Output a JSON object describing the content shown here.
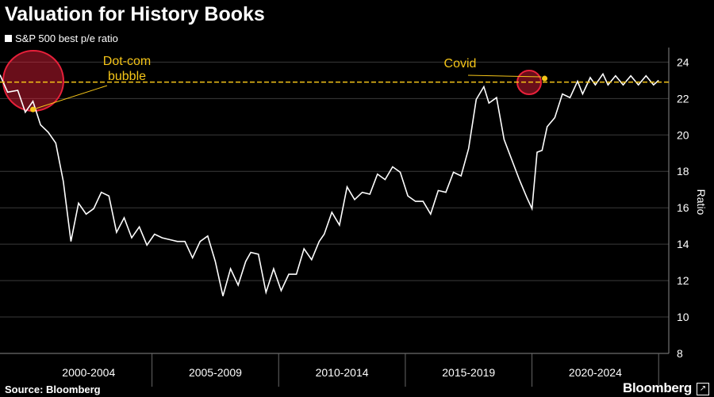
{
  "chart_data": {
    "type": "line",
    "title": "Valuation for History Books",
    "series": [
      {
        "name": "S&P 500 best p/e ratio",
        "x": [
          1999.0,
          1999.3,
          1999.7,
          2000.0,
          2000.3,
          2000.6,
          2000.9,
          2001.2,
          2001.5,
          2001.8,
          2002.1,
          2002.4,
          2002.7,
          2003.0,
          2003.3,
          2003.6,
          2003.9,
          2004.2,
          2004.5,
          2004.8,
          2005.1,
          2005.4,
          2005.7,
          2006.0,
          2006.3,
          2006.6,
          2006.9,
          2007.2,
          2007.5,
          2007.8,
          2008.1,
          2008.4,
          2008.7,
          2008.9,
          2009.2,
          2009.5,
          2009.8,
          2010.1,
          2010.4,
          2010.7,
          2011.0,
          2011.3,
          2011.6,
          2011.8,
          2012.1,
          2012.4,
          2012.7,
          2013.0,
          2013.3,
          2013.6,
          2013.9,
          2014.2,
          2014.5,
          2014.8,
          2015.1,
          2015.4,
          2015.7,
          2016.0,
          2016.3,
          2016.6,
          2016.9,
          2017.2,
          2017.5,
          2017.8,
          2018.1,
          2018.3,
          2018.6,
          2018.9,
          2019.2,
          2019.5,
          2019.8,
          2020.0,
          2020.2,
          2020.4,
          2020.6,
          2020.9,
          2021.2,
          2021.5,
          2021.8,
          2022.0,
          2022.3,
          2022.5,
          2022.8,
          2023.0,
          2023.3,
          2023.6,
          2023.9,
          2024.2,
          2024.5,
          2024.8,
          2025.0
        ],
        "values": [
          23.3,
          22.6,
          22.2,
          21.5,
          21.6,
          20.8,
          19.9,
          19.8,
          17.2,
          14.4,
          16.0,
          15.9,
          15.7,
          17.1,
          16.4,
          14.9,
          15.2,
          14.6,
          14.7,
          14.2,
          14.3,
          14.6,
          14.0,
          14.4,
          13.9,
          13.5,
          13.9,
          14.7,
          12.8,
          11.4,
          12.4,
          12.0,
          12.8,
          13.8,
          13.2,
          11.6,
          12.4,
          11.7,
          12.1,
          12.6,
          13.5,
          13.4,
          13.9,
          14.8,
          15.5,
          15.3,
          16.9,
          16.7,
          16.6,
          17.0,
          17.6,
          17.8,
          18.0,
          18.2,
          16.4,
          16.6,
          16.1,
          15.9,
          16.7,
          17.1,
          17.7,
          18.0,
          19.0,
          22.2,
          22.4,
          22.0,
          21.8,
          20.0,
          18.4,
          17.8,
          16.3,
          16.2,
          18.8,
          19.4,
          20.2,
          21.2,
          22.0,
          22.3,
          22.7,
          22.5,
          22.9,
          23.0,
          23.1,
          23.0,
          23.0,
          23.0,
          23.0,
          23.0,
          23.0,
          23.0,
          23.0
        ]
      }
    ],
    "xlabels": [
      "2000-2004",
      "2005-2009",
      "2010-2014",
      "2015-2019",
      "2020-2024"
    ],
    "ylabel": "Ratio",
    "yticks": [
      8,
      10,
      12,
      14,
      16,
      18,
      20,
      22,
      24
    ],
    "ylim": [
      8,
      24.8
    ],
    "xlim": [
      1999.0,
      2025.4
    ],
    "reference_line": 22.9,
    "annotations": [
      {
        "text": "Dot-com",
        "x": 2000.3,
        "y": 21.4
      },
      {
        "text": "bubble",
        "x": 2000.3,
        "y": 21.4
      },
      {
        "text": "Covid",
        "x": 2020.5,
        "y": 23.1
      }
    ],
    "legend": "top-left",
    "grid": true,
    "colors": {
      "line": "#ffffff",
      "reference": "#f5c518",
      "highlight": "#e8203a",
      "grid": "#3a3a3a"
    }
  },
  "footer": {
    "source": "Source: Bloomberg",
    "brand": "Bloomberg"
  }
}
